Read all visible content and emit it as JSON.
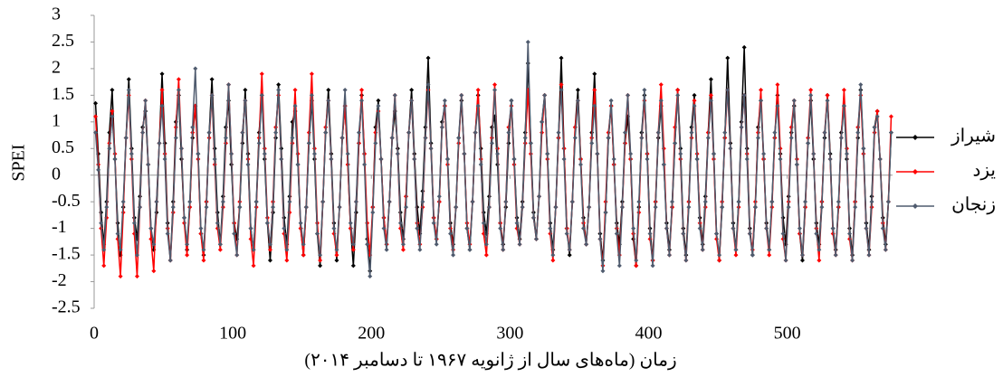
{
  "chart_data": {
    "type": "line",
    "y_label": "SPEI",
    "x_label": "زمان (ماه‌های سال از ژانویه ۱۹۶۷ تا دسامبر ۲۰۱۴)",
    "xlim": [
      0,
      576
    ],
    "xticks": [
      0,
      100,
      200,
      300,
      400,
      500
    ],
    "ylim": [
      -2.5,
      3
    ],
    "yticks": [
      -2.5,
      -2,
      -1.5,
      -1,
      -0.5,
      0,
      0.5,
      1,
      1.5,
      2,
      2.5,
      3
    ],
    "legend": "right",
    "x": [
      1,
      3,
      5,
      7,
      9,
      11,
      13,
      15,
      17,
      19,
      21,
      23,
      25,
      27,
      29,
      31,
      33,
      35,
      37,
      39,
      41,
      43,
      45,
      47,
      49,
      51,
      53,
      55,
      57,
      59,
      61,
      63,
      65,
      67,
      69,
      71,
      73,
      75,
      77,
      79,
      81,
      83,
      85,
      87,
      89,
      91,
      93,
      95,
      97,
      99,
      101,
      103,
      105,
      107,
      109,
      111,
      113,
      115,
      117,
      119,
      121,
      123,
      125,
      127,
      129,
      131,
      133,
      135,
      137,
      139,
      141,
      143,
      145,
      147,
      149,
      151,
      153,
      155,
      157,
      159,
      161,
      163,
      165,
      167,
      169,
      171,
      173,
      175,
      177,
      179,
      181,
      183,
      185,
      187,
      189,
      191,
      193,
      195,
      197,
      199,
      201,
      203,
      205,
      207,
      209,
      211,
      213,
      215,
      217,
      219,
      221,
      223,
      225,
      227,
      229,
      231,
      233,
      235,
      237,
      239,
      241,
      243,
      245,
      247,
      249,
      251,
      253,
      255,
      257,
      259,
      261,
      263,
      265,
      267,
      269,
      271,
      273,
      275,
      277,
      279,
      281,
      283,
      285,
      287,
      289,
      291,
      293,
      295,
      297,
      299,
      301,
      303,
      305,
      307,
      309,
      311,
      313,
      315,
      317,
      319,
      321,
      323,
      325,
      327,
      329,
      331,
      333,
      335,
      337,
      339,
      341,
      343,
      345,
      347,
      349,
      351,
      353,
      355,
      357,
      359,
      361,
      363,
      365,
      367,
      369,
      371,
      373,
      375,
      377,
      379,
      381,
      383,
      385,
      387,
      389,
      391,
      393,
      395,
      397,
      399,
      401,
      403,
      405,
      407,
      409,
      411,
      413,
      415,
      417,
      419,
      421,
      423,
      425,
      427,
      429,
      431,
      433,
      435,
      437,
      439,
      441,
      443,
      445,
      447,
      449,
      451,
      453,
      455,
      457,
      459,
      461,
      463,
      465,
      467,
      469,
      471,
      473,
      475,
      477,
      479,
      481,
      483,
      485,
      487,
      489,
      491,
      493,
      495,
      497,
      499,
      501,
      503,
      505,
      507,
      509,
      511,
      513,
      515,
      517,
      519,
      521,
      523,
      525,
      527,
      529,
      531,
      533,
      535,
      537,
      539,
      541,
      543,
      545,
      547,
      549,
      551,
      553,
      555,
      557,
      559,
      561,
      563,
      565,
      567,
      569,
      571,
      573,
      575
    ],
    "series": [
      {
        "name": "شیراز",
        "color": "#000000",
        "values": [
          1.35,
          0.4,
          -0.7,
          -1.3,
          -0.5,
          0.8,
          1.6,
          0.3,
          -0.9,
          -1.5,
          -0.6,
          0.7,
          1.8,
          0.5,
          -0.8,
          -1.2,
          -0.4,
          0.9,
          1.2,
          0.2,
          -1.0,
          -1.4,
          -0.7,
          0.6,
          1.9,
          0.6,
          -0.9,
          -1.6,
          -0.5,
          1.0,
          1.5,
          0.3,
          -0.8,
          -1.4,
          -0.6,
          0.7,
          1.3,
          0.4,
          -1.1,
          -1.5,
          -0.5,
          0.8,
          1.8,
          0.5,
          -0.7,
          -1.3,
          -0.4,
          0.9,
          1.4,
          0.2,
          -0.9,
          -1.2,
          -0.6,
          0.6,
          1.6,
          0.4,
          -1.0,
          -1.4,
          -0.5,
          0.8,
          1.5,
          0.3,
          -0.9,
          -1.6,
          -0.7,
          0.7,
          1.7,
          0.5,
          -0.8,
          -1.3,
          -0.4,
          1.0,
          1.2,
          0.2,
          -1.0,
          -1.5,
          -0.6,
          0.6,
          1.4,
          0.3,
          -1.1,
          -1.7,
          -0.5,
          0.8,
          1.6,
          0.4,
          -0.9,
          -1.6,
          -0.6,
          0.7,
          1.3,
          0.2,
          -1.0,
          -1.7,
          -0.7,
          0.6,
          1.5,
          0.4,
          -1.2,
          -1.8,
          -0.6,
          0.9,
          1.4,
          0.3,
          -0.8,
          -1.3,
          -0.5,
          0.7,
          1.2,
          0.5,
          -0.7,
          -1.2,
          -0.4,
          0.8,
          1.6,
          0.4,
          -0.6,
          -1.1,
          -0.3,
          0.9,
          2.2,
          0.6,
          -0.8,
          -1.2,
          -0.5,
          1.0,
          1.3,
          0.3,
          -0.9,
          -1.3,
          -0.6,
          0.7,
          1.4,
          0.4,
          -1.0,
          -1.4,
          -0.5,
          0.8,
          1.5,
          0.5,
          -0.7,
          -1.1,
          -0.4,
          0.9,
          1.1,
          0.2,
          -0.9,
          -1.3,
          -0.6,
          0.6,
          1.4,
          0.3,
          -0.8,
          -1.2,
          -0.5,
          0.8,
          2.1,
          0.6,
          -0.7,
          -1.2,
          -0.4,
          1.0,
          1.5,
          0.4,
          -0.9,
          -1.4,
          -0.6,
          0.7,
          2.2,
          0.5,
          -1.0,
          -1.5,
          -0.5,
          0.9,
          1.6,
          0.3,
          -0.8,
          -1.3,
          -0.6,
          0.8,
          1.9,
          0.4,
          -1.1,
          -1.6,
          -0.7,
          0.7,
          1.3,
          0.2,
          -0.9,
          -1.3,
          -0.5,
          0.6,
          1.1,
          0.3,
          -1.2,
          -1.7,
          -0.6,
          0.8,
          1.5,
          0.4,
          -1.0,
          -1.6,
          -0.5,
          0.7,
          1.3,
          0.2,
          -0.9,
          -1.4,
          -0.6,
          0.6,
          1.6,
          0.5,
          -1.0,
          -1.5,
          -0.5,
          0.9,
          1.5,
          0.3,
          -0.8,
          -1.3,
          -0.4,
          0.8,
          1.8,
          0.4,
          -1.1,
          -1.6,
          -0.6,
          0.7,
          2.2,
          0.6,
          -0.9,
          -1.4,
          -0.5,
          1.0,
          2.4,
          0.5,
          -1.0,
          -1.5,
          -0.6,
          0.9,
          1.4,
          0.3,
          -0.9,
          -1.4,
          -0.5,
          0.7,
          1.5,
          0.4,
          -0.8,
          -1.3,
          -0.4,
          0.8,
          1.3,
          0.2,
          -1.1,
          -1.6,
          -0.6,
          0.6,
          1.4,
          0.3,
          -0.9,
          -1.3,
          -0.5,
          0.7,
          1.5,
          0.4,
          -1.0,
          -1.4,
          -0.6,
          0.8,
          1.3,
          0.3,
          -1.0,
          -1.5,
          -0.5,
          0.7,
          1.6,
          0.5,
          -0.9,
          -1.4,
          -0.4,
          0.9,
          1.2,
          0.3,
          -0.8,
          -1.3,
          -0.5,
          0.8
        ]
      },
      {
        "name": "یزد",
        "color": "#ff0000",
        "values": [
          1.1,
          0.2,
          -1.0,
          -1.7,
          -0.8,
          0.6,
          1.2,
          0.4,
          -1.2,
          -1.9,
          -0.7,
          0.7,
          1.5,
          0.3,
          -1.1,
          -1.9,
          -0.6,
          0.8,
          1.4,
          0.2,
          -1.2,
          -1.8,
          -0.5,
          0.6,
          1.6,
          0.4,
          -1.0,
          -1.6,
          -0.7,
          0.9,
          1.8,
          0.5,
          -0.9,
          -1.5,
          -0.6,
          0.8,
          1.3,
          0.3,
          -1.1,
          -1.6,
          -0.5,
          0.7,
          1.5,
          0.2,
          -1.0,
          -1.4,
          -0.6,
          0.6,
          1.7,
          0.4,
          -0.9,
          -1.5,
          -0.5,
          0.8,
          1.4,
          0.3,
          -1.2,
          -1.7,
          -0.6,
          0.7,
          1.9,
          0.5,
          -0.8,
          -1.4,
          -0.5,
          0.9,
          1.5,
          0.3,
          -1.1,
          -1.6,
          -0.7,
          0.6,
          1.6,
          0.4,
          -1.0,
          -1.5,
          -0.6,
          0.8,
          1.9,
          0.5,
          -0.9,
          -1.6,
          -0.5,
          0.9,
          1.4,
          0.3,
          -1.1,
          -1.5,
          -0.6,
          0.7,
          1.3,
          0.2,
          -1.0,
          -1.4,
          -0.5,
          0.6,
          1.6,
          0.4,
          -0.9,
          -1.5,
          -0.6,
          0.8,
          1.2,
          0.3,
          -0.8,
          -1.3,
          -0.5,
          0.7,
          1.5,
          0.4,
          -1.0,
          -1.4,
          -0.4,
          0.8,
          1.4,
          0.3,
          -0.9,
          -1.3,
          -0.6,
          0.7,
          1.6,
          0.5,
          -0.8,
          -1.2,
          -0.5,
          0.9,
          1.3,
          0.2,
          -1.0,
          -1.4,
          -0.6,
          0.6,
          1.5,
          0.4,
          -0.9,
          -1.3,
          -0.5,
          0.8,
          1.6,
          0.3,
          -1.1,
          -1.5,
          -0.6,
          0.7,
          1.7,
          0.5,
          -0.9,
          -1.4,
          -0.5,
          0.9,
          1.3,
          0.2,
          -1.0,
          -1.3,
          -0.6,
          0.6,
          1.6,
          0.4,
          -0.8,
          -1.2,
          -0.4,
          0.8,
          1.5,
          0.3,
          -1.1,
          -1.6,
          -0.6,
          0.7,
          1.7,
          0.5,
          -1.0,
          -1.4,
          -0.5,
          0.9,
          1.4,
          0.3,
          -0.9,
          -1.3,
          -0.6,
          0.7,
          1.6,
          0.4,
          -1.2,
          -1.7,
          -0.5,
          0.8,
          1.3,
          0.2,
          -1.0,
          -1.5,
          -0.6,
          0.6,
          1.5,
          0.3,
          -1.1,
          -1.7,
          -0.7,
          0.7,
          1.4,
          0.4,
          -1.2,
          -1.6,
          -0.5,
          0.8,
          1.7,
          0.5,
          -1.0,
          -1.5,
          -0.6,
          0.9,
          1.6,
          0.3,
          -1.1,
          -1.6,
          -0.5,
          0.7,
          1.4,
          0.4,
          -0.9,
          -1.4,
          -0.6,
          0.8,
          1.5,
          0.3,
          -1.2,
          -1.6,
          -0.5,
          0.7,
          1.6,
          0.5,
          -1.0,
          -1.5,
          -0.6,
          0.9,
          1.5,
          0.4,
          -1.1,
          -1.4,
          -0.5,
          0.8,
          1.6,
          0.3,
          -1.0,
          -1.5,
          -0.6,
          0.7,
          1.7,
          0.5,
          -1.2,
          -1.6,
          -0.5,
          0.9,
          1.4,
          0.3,
          -1.1,
          -1.5,
          -0.6,
          0.7,
          1.6,
          0.4,
          -1.0,
          -1.6,
          -0.5,
          0.8,
          1.5,
          0.3,
          -1.1,
          -1.5,
          -0.6,
          0.7,
          1.6,
          0.5,
          -1.2,
          -1.6,
          -0.5,
          0.9,
          1.5,
          0.4,
          -1.0,
          -1.5,
          -0.6,
          0.8,
          1.2,
          0.3,
          -0.9,
          -1.4,
          -0.5,
          1.1
        ]
      },
      {
        "name": "زنجان",
        "color": "#4f5b6e",
        "values": [
          0.8,
          0.1,
          -0.9,
          -1.4,
          -0.6,
          0.5,
          1.1,
          0.3,
          -1.1,
          -1.4,
          -0.5,
          0.7,
          1.6,
          0.4,
          -0.9,
          -1.5,
          -0.6,
          0.8,
          1.4,
          0.2,
          -1.0,
          -1.3,
          -0.5,
          0.6,
          1.3,
          0.3,
          -1.1,
          -1.6,
          -0.6,
          0.7,
          1.6,
          0.5,
          -0.8,
          -1.3,
          -0.5,
          0.9,
          2.0,
          0.4,
          -1.0,
          -1.4,
          -0.6,
          0.8,
          1.5,
          0.3,
          -0.9,
          -1.3,
          -0.5,
          0.7,
          1.7,
          0.4,
          -1.1,
          -1.5,
          -0.6,
          0.8,
          1.4,
          0.2,
          -1.0,
          -1.4,
          -0.5,
          0.6,
          1.5,
          0.4,
          -0.9,
          -1.3,
          -0.6,
          0.8,
          1.6,
          0.3,
          -1.0,
          -1.4,
          -0.5,
          0.7,
          1.3,
          0.2,
          -0.9,
          -1.3,
          -0.6,
          0.6,
          1.5,
          0.4,
          -1.1,
          -1.5,
          -0.5,
          0.8,
          1.4,
          0.3,
          -1.0,
          -1.4,
          -0.6,
          0.7,
          1.6,
          0.4,
          -0.9,
          -1.3,
          -0.5,
          0.8,
          1.4,
          0.2,
          -1.3,
          -1.9,
          -0.7,
          0.6,
          1.3,
          0.3,
          -1.0,
          -1.4,
          -0.5,
          0.7,
          1.5,
          0.4,
          -0.9,
          -1.3,
          -0.6,
          0.8,
          1.4,
          0.3,
          -1.0,
          -1.4,
          -0.5,
          0.7,
          1.7,
          0.5,
          -0.9,
          -1.3,
          -0.4,
          0.9,
          1.4,
          0.3,
          -1.1,
          -1.5,
          -0.6,
          0.7,
          1.5,
          0.4,
          -1.0,
          -1.4,
          -0.5,
          0.8,
          1.3,
          0.2,
          -0.9,
          -1.3,
          -0.6,
          0.6,
          1.6,
          0.4,
          -1.0,
          -1.4,
          -0.5,
          0.8,
          1.4,
          0.3,
          -0.9,
          -1.3,
          -0.6,
          0.7,
          2.5,
          0.6,
          -0.8,
          -1.2,
          -0.4,
          1.0,
          1.5,
          0.4,
          -1.0,
          -1.5,
          -0.6,
          0.8,
          1.6,
          0.3,
          -1.1,
          -1.4,
          -0.5,
          0.7,
          1.4,
          0.2,
          -1.0,
          -1.3,
          -0.6,
          0.6,
          1.3,
          0.4,
          -1.2,
          -1.8,
          -0.7,
          0.7,
          1.4,
          0.3,
          -1.1,
          -1.7,
          -0.6,
          0.8,
          1.5,
          0.4,
          -1.0,
          -1.6,
          -0.5,
          0.7,
          1.6,
          0.3,
          -1.1,
          -1.7,
          -0.6,
          0.8,
          1.4,
          0.2,
          -1.0,
          -1.5,
          -0.5,
          0.6,
          1.5,
          0.4,
          -1.1,
          -1.6,
          -0.6,
          0.8,
          1.3,
          0.3,
          -1.0,
          -1.4,
          -0.5,
          0.7,
          1.4,
          0.4,
          -1.1,
          -1.5,
          -0.6,
          0.8,
          1.6,
          0.5,
          -1.0,
          -1.4,
          -0.5,
          0.9,
          1.5,
          0.3,
          -1.1,
          -1.5,
          -0.6,
          0.7,
          1.4,
          0.4,
          -1.0,
          -1.4,
          -0.5,
          0.8,
          1.3,
          0.3,
          -1.1,
          -1.6,
          -0.6,
          0.7,
          1.4,
          0.2,
          -1.0,
          -1.5,
          -0.5,
          0.6,
          1.5,
          0.4,
          -1.1,
          -1.4,
          -0.6,
          0.8,
          1.4,
          0.3,
          -1.0,
          -1.5,
          -0.5,
          0.7,
          1.3,
          0.4,
          -1.1,
          -1.6,
          -0.6,
          0.8,
          1.7,
          0.5,
          -1.0,
          -1.5,
          -0.5,
          0.9,
          1.1,
          0.3,
          -1.0,
          -1.4,
          -0.5,
          0.8
        ]
      }
    ]
  }
}
